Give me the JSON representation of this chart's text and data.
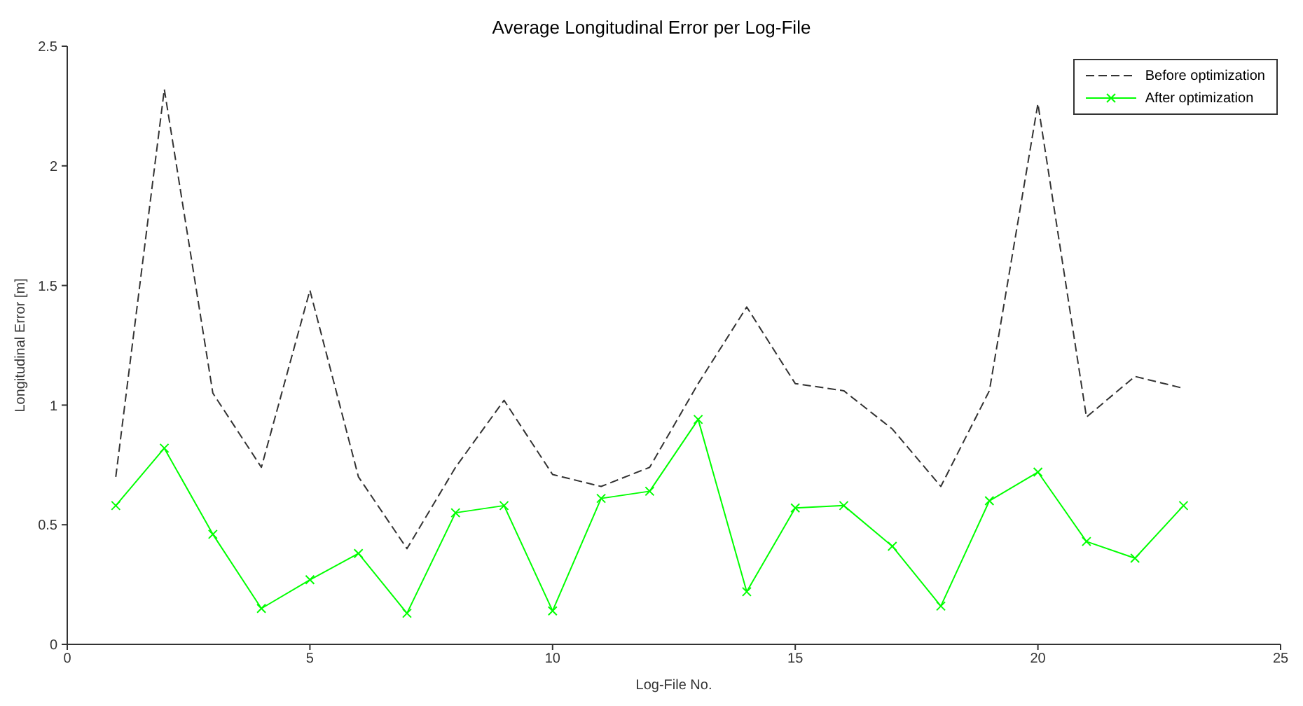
{
  "chart_data": {
    "type": "line",
    "title": "Average Longitudinal Error per Log-File",
    "xlabel": "Log-File No.",
    "ylabel": "Longitudinal Error [m]",
    "x": [
      1,
      2,
      3,
      4,
      5,
      6,
      7,
      8,
      9,
      10,
      11,
      12,
      13,
      14,
      15,
      16,
      17,
      18,
      19,
      20,
      21,
      22,
      23
    ],
    "series": [
      {
        "name": "Before optimization",
        "color": "#333333",
        "line_style": "dashed",
        "marker": "none",
        "values": [
          0.7,
          2.32,
          1.05,
          0.74,
          1.48,
          0.7,
          0.4,
          0.74,
          1.02,
          0.71,
          0.66,
          0.74,
          1.09,
          1.41,
          1.09,
          1.06,
          0.9,
          0.66,
          1.06,
          2.26,
          0.95,
          1.12,
          1.07
        ]
      },
      {
        "name": "After optimization",
        "color": "#00ff00",
        "line_style": "solid",
        "marker": "cross",
        "values": [
          0.58,
          0.82,
          0.46,
          0.15,
          0.27,
          0.38,
          0.13,
          0.55,
          0.58,
          0.14,
          0.61,
          0.64,
          0.94,
          0.22,
          0.57,
          0.58,
          0.41,
          0.16,
          0.6,
          0.72,
          0.43,
          0.36,
          0.58
        ]
      }
    ],
    "xlim": [
      0,
      25
    ],
    "xticks": [
      0,
      5,
      10,
      15,
      20,
      25
    ],
    "ylim": [
      0,
      2.5
    ],
    "yticks": [
      0,
      0.5,
      1,
      1.5,
      2,
      2.5
    ],
    "grid": false,
    "legend": "top right"
  }
}
